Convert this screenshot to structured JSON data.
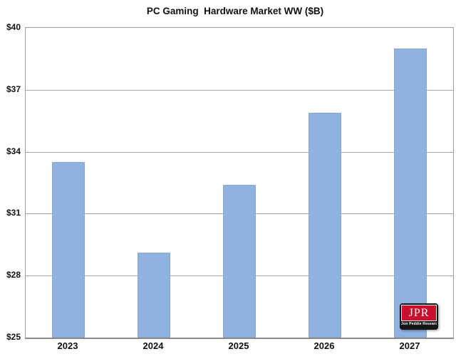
{
  "chart_data": {
    "type": "bar",
    "title": "PC Gaming  Hardware Market WW ($B)",
    "categories": [
      "2023",
      "2024",
      "2025",
      "2026",
      "2027"
    ],
    "values": [
      33.5,
      29.1,
      32.4,
      35.9,
      39.0
    ],
    "xlabel": "",
    "ylabel": "",
    "ylim": [
      25,
      40
    ],
    "yticks": [
      25,
      28,
      31,
      34,
      37,
      40
    ],
    "ytick_labels": [
      "$25",
      "$28",
      "$31",
      "$34",
      "$37",
      "$40"
    ],
    "grid": true,
    "legend": "none",
    "bar_color": "#8fb2e0",
    "bar_border_color": "#84a7d6",
    "gridline_color": "#a6a6a6",
    "plot_border_color": "#9e9e9e",
    "text_color": "#111111"
  },
  "logo": {
    "acronym": "JPR",
    "name": "Jon Peddie Research",
    "bg_color": "#161616",
    "accent_color": "#c8102e"
  }
}
